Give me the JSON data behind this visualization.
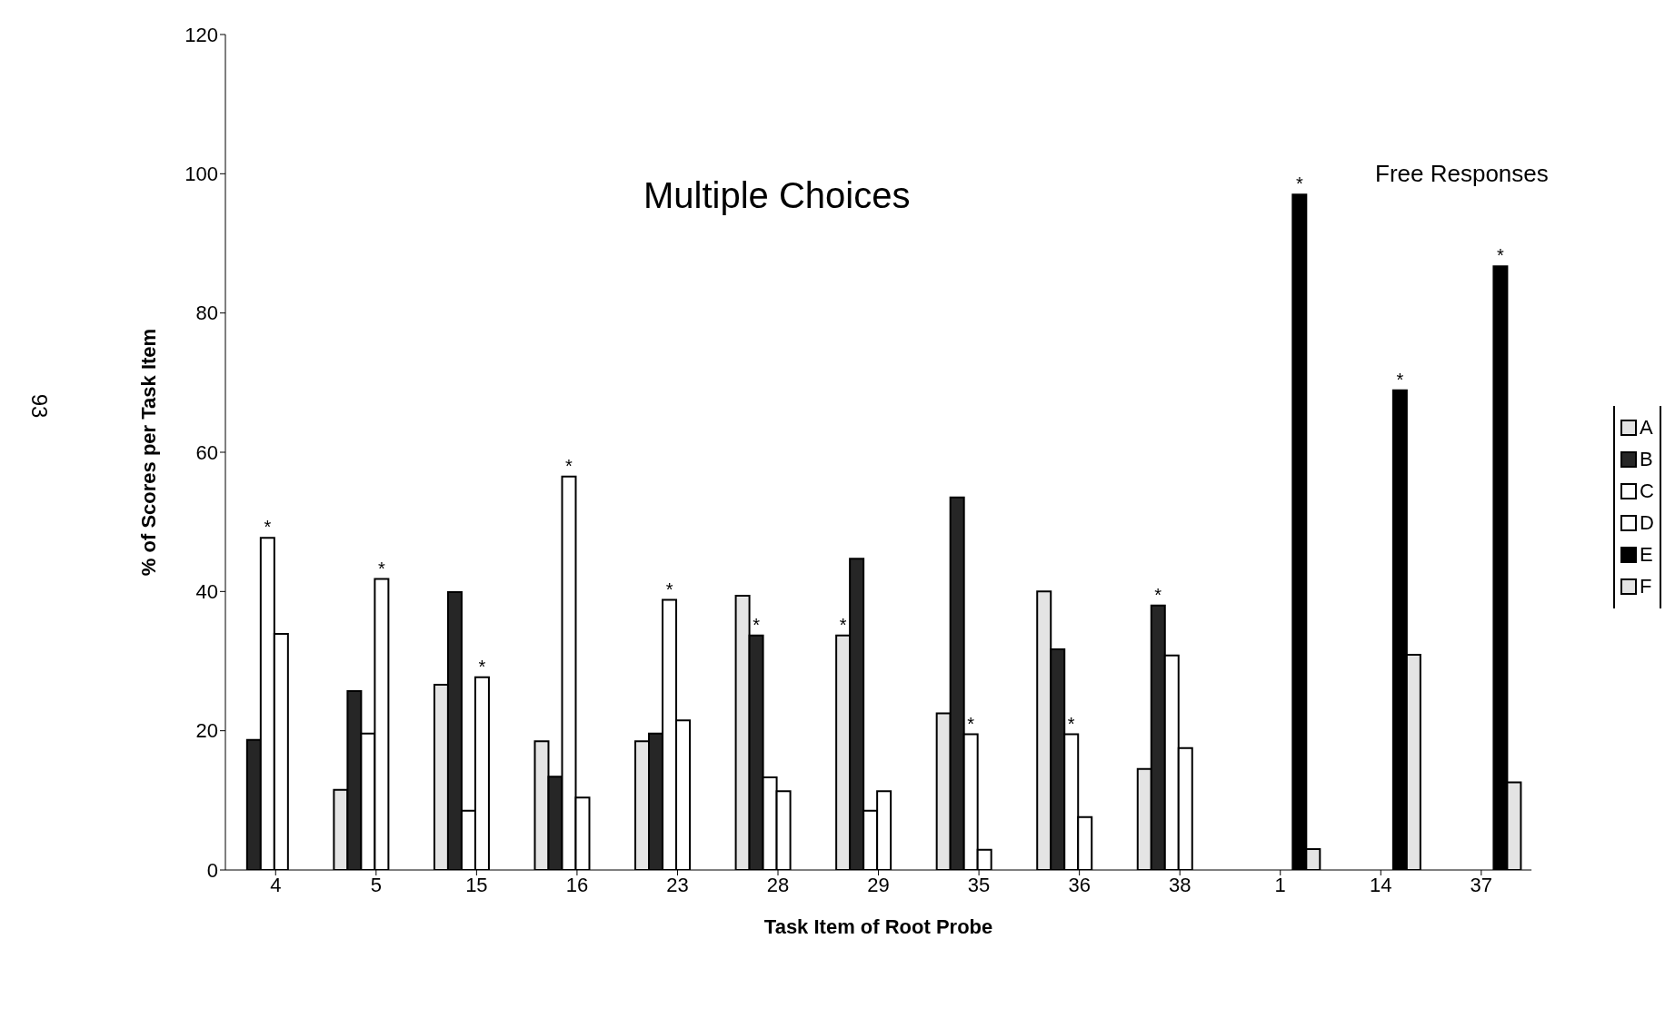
{
  "chart_data": {
    "type": "bar",
    "categories": [
      "4",
      "5",
      "15",
      "16",
      "23",
      "28",
      "29",
      "35",
      "36",
      "38",
      "1",
      "14",
      "37"
    ],
    "series": [
      {
        "name": "A",
        "color": "#e4e4e4",
        "values": [
          null,
          11.5,
          26.6,
          18.5,
          18.5,
          39.4,
          33.7,
          22.5,
          40,
          14.5,
          null,
          null,
          null
        ],
        "value_labels": [
          null,
          null,
          null,
          null,
          null,
          null,
          "*",
          null,
          null,
          null,
          null,
          null,
          null
        ]
      },
      {
        "name": "B",
        "color": "#262626",
        "values": [
          18.7,
          25.7,
          39.9,
          13.4,
          19.6,
          33.7,
          44.7,
          53.5,
          31.7,
          38,
          null,
          null,
          null
        ],
        "value_labels": [
          null,
          null,
          null,
          null,
          null,
          "*",
          null,
          null,
          null,
          "*",
          null,
          null,
          null
        ]
      },
      {
        "name": "C",
        "color": "#ffffff",
        "values": [
          47.7,
          19.6,
          8.5,
          56.5,
          38.8,
          13.3,
          8.5,
          19.5,
          19.5,
          30.8,
          null,
          null,
          null
        ],
        "value_labels": [
          "*",
          null,
          null,
          "*",
          "*",
          null,
          null,
          "*",
          "*",
          null,
          null,
          null,
          null
        ]
      },
      {
        "name": "D",
        "color": "#ffffff",
        "values": [
          33.9,
          41.8,
          27.7,
          10.4,
          21.5,
          11.3,
          11.3,
          2.9,
          7.6,
          17.5,
          null,
          null,
          null
        ],
        "value_labels": [
          null,
          "*",
          "*",
          null,
          null,
          null,
          null,
          null,
          null,
          null,
          null,
          null,
          null
        ]
      },
      {
        "name": "E",
        "color": "#000000",
        "values": [
          null,
          null,
          null,
          null,
          null,
          null,
          null,
          null,
          null,
          null,
          97,
          68.9,
          86.7
        ],
        "value_labels": [
          null,
          null,
          null,
          null,
          null,
          null,
          null,
          null,
          null,
          null,
          "*",
          "*",
          "*"
        ]
      },
      {
        "name": "F",
        "color": "#e4e4e4",
        "values": [
          null,
          null,
          null,
          null,
          null,
          null,
          null,
          null,
          null,
          null,
          3,
          30.9,
          12.6
        ]
      }
    ],
    "xlabel": "Task Item of Root Probe",
    "ylabel": "% of Scores per Task Item",
    "ylim": [
      0,
      120
    ],
    "yticks": [
      0,
      20,
      40,
      60,
      80,
      100,
      120
    ],
    "grid": false,
    "legend": "right",
    "annotations": [
      "Multiple Choices",
      "Free Responses",
      "93"
    ]
  }
}
